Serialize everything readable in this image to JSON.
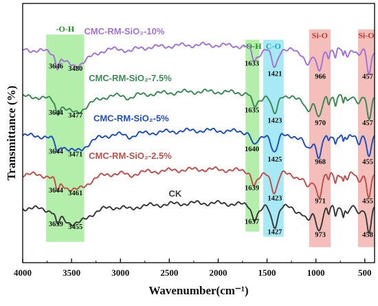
{
  "chart_data": {
    "type": "line",
    "xlabel": "Wavenumber(cm⁻¹)",
    "ylabel": "Transmittance (%)",
    "xlim": [
      4000,
      400
    ],
    "x_reversed": true,
    "x_ticks": [
      4000,
      3500,
      3000,
      2500,
      2000,
      1500,
      1000,
      500
    ],
    "y_ticks_shown": false,
    "grid": false,
    "legend": "inline labels above each curve",
    "bands": [
      {
        "label": "-O-H",
        "from": 3760,
        "to": 3370,
        "color": "#9be88f",
        "text_color": "#1f8f1f"
      },
      {
        "label": "-O-H",
        "from": 1720,
        "to": 1580,
        "color": "#9be88f",
        "text_color": "#1f8f1f"
      },
      {
        "label": "C-O",
        "from": 1540,
        "to": 1330,
        "color": "#8ae3f2",
        "text_color": "#1aa7c7"
      },
      {
        "label": "Si-O",
        "from": 1070,
        "to": 850,
        "color": "#f0a9a3",
        "text_color": "#c0392b"
      },
      {
        "label": "Si-O",
        "from": 570,
        "to": 400,
        "color": "#f0a9a3",
        "text_color": "#c0392b"
      }
    ],
    "series": [
      {
        "name": "CMC-RM-SiO₂-10%",
        "color": "#a373d6",
        "baseline": 0.82,
        "peaks": [
          "3646",
          "3480",
          "1633",
          "1421",
          "966",
          "457"
        ]
      },
      {
        "name": "CMC-RM-SiO₂-7.5%",
        "color": "#3c8a55",
        "baseline": 0.64,
        "peaks": [
          "3644",
          "3477",
          "1635",
          "1423",
          "970",
          "457"
        ]
      },
      {
        "name": "CMC-RM-SiO₂-5%",
        "color": "#1f4fc2",
        "baseline": 0.49,
        "peaks": [
          "3644",
          "3471",
          "1640",
          "1425",
          "968",
          "455"
        ]
      },
      {
        "name": "CMC-RM-SiO₂-2.5%",
        "color": "#c0504d",
        "baseline": 0.34,
        "peaks": [
          "3644",
          "3461",
          "1639",
          "1423",
          "971",
          "455"
        ]
      },
      {
        "name": "CK",
        "color": "#3a3a3a",
        "baseline": 0.21,
        "peaks": [
          "3639",
          "3455",
          "1637",
          "1427",
          "973",
          "458"
        ]
      }
    ]
  }
}
